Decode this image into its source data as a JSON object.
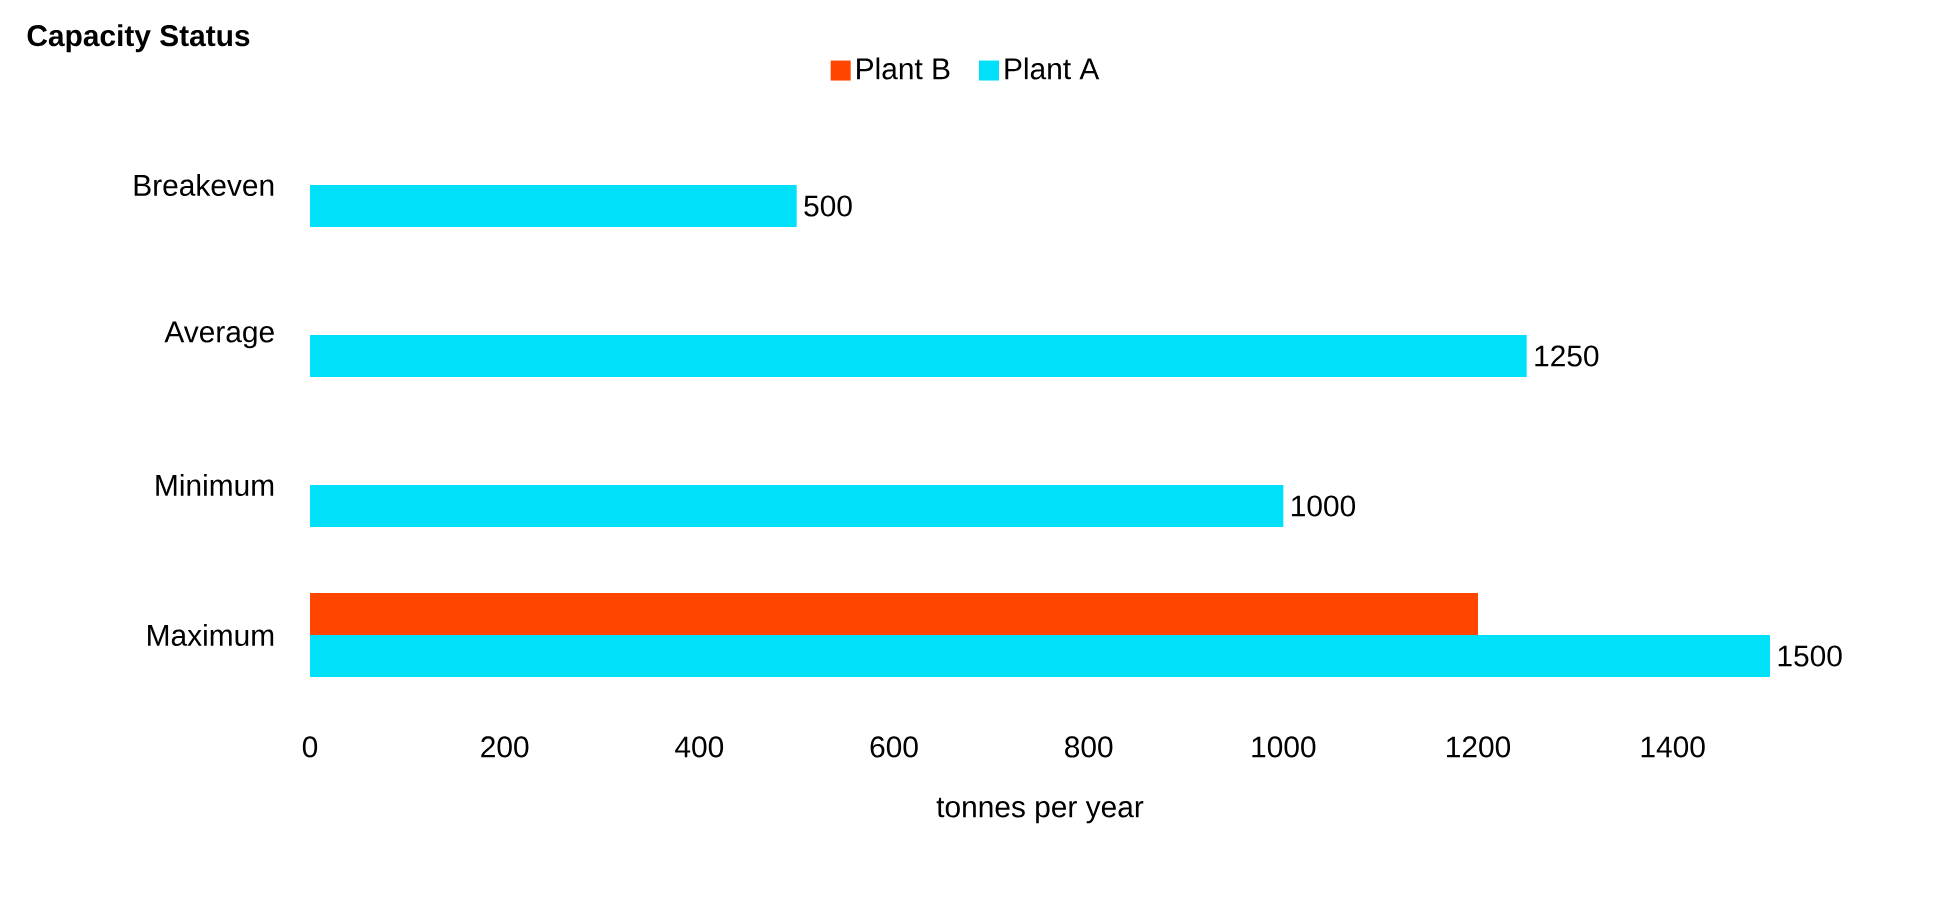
{
  "chart_data": {
    "type": "bar",
    "orientation": "horizontal",
    "title": "Capacity Status",
    "xlabel": "tonnes per year",
    "categories": [
      "Breakeven",
      "Average",
      "Minimum",
      "Maximum"
    ],
    "series": [
      {
        "name": "Plant B",
        "color": "#ff4500",
        "values": [
          null,
          null,
          null,
          1200
        ],
        "value_labels": [
          null,
          null,
          null,
          null
        ]
      },
      {
        "name": "Plant A",
        "color": "#00e1f9",
        "values": [
          500,
          1250,
          1000,
          1500
        ],
        "value_labels": [
          "500",
          "1250",
          "1000",
          "1500"
        ]
      }
    ],
    "xlim": [
      0,
      1500
    ],
    "xticks": [
      0,
      200,
      400,
      600,
      800,
      1000,
      1200,
      1400
    ],
    "legend": "top",
    "grid": false
  }
}
